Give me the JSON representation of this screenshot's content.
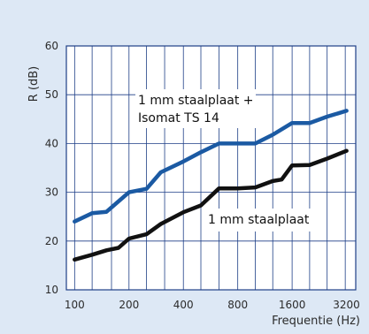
{
  "chart_data": {
    "type": "line",
    "xlabel": "Frequentie (Hz)",
    "ylabel": "R (dB)",
    "x_scale": "log",
    "x_ticks": [
      100,
      200,
      400,
      800,
      1600,
      3200
    ],
    "x_tick_labels": [
      "100",
      "200",
      "400",
      "800",
      "1600",
      "3200"
    ],
    "xlim": [
      90,
      3600
    ],
    "y_ticks": [
      10,
      20,
      30,
      40,
      50,
      60
    ],
    "y_tick_labels": [
      "10",
      "20",
      "30",
      "40",
      "50",
      "60"
    ],
    "ylim": [
      10,
      60
    ],
    "grid": true,
    "series": [
      {
        "name_lines": [
          "1 mm staalplaat +",
          "Isomat TS 14"
        ],
        "color": "#1b5aa3",
        "x": [
          100,
          125,
          150,
          200,
          250,
          300,
          400,
          500,
          630,
          800,
          1000,
          1250,
          1600,
          2000,
          2500,
          3200
        ],
        "y": [
          24,
          25.7,
          26,
          30,
          30.7,
          34.1,
          36.3,
          38.2,
          40,
          40,
          40,
          41.8,
          44.2,
          44.2,
          45.5,
          46.7
        ]
      },
      {
        "name_lines": [
          "1 mm staalplaat"
        ],
        "color": "#111111",
        "x": [
          100,
          125,
          150,
          175,
          200,
          250,
          300,
          400,
          500,
          630,
          800,
          1000,
          1250,
          1400,
          1600,
          2000,
          2500,
          3200
        ],
        "y": [
          16.2,
          17.2,
          18.1,
          18.6,
          20.5,
          21.4,
          23.5,
          25.9,
          27.3,
          30.8,
          30.8,
          31,
          32.3,
          32.6,
          35.5,
          35.6,
          36.9,
          38.5
        ]
      }
    ]
  }
}
